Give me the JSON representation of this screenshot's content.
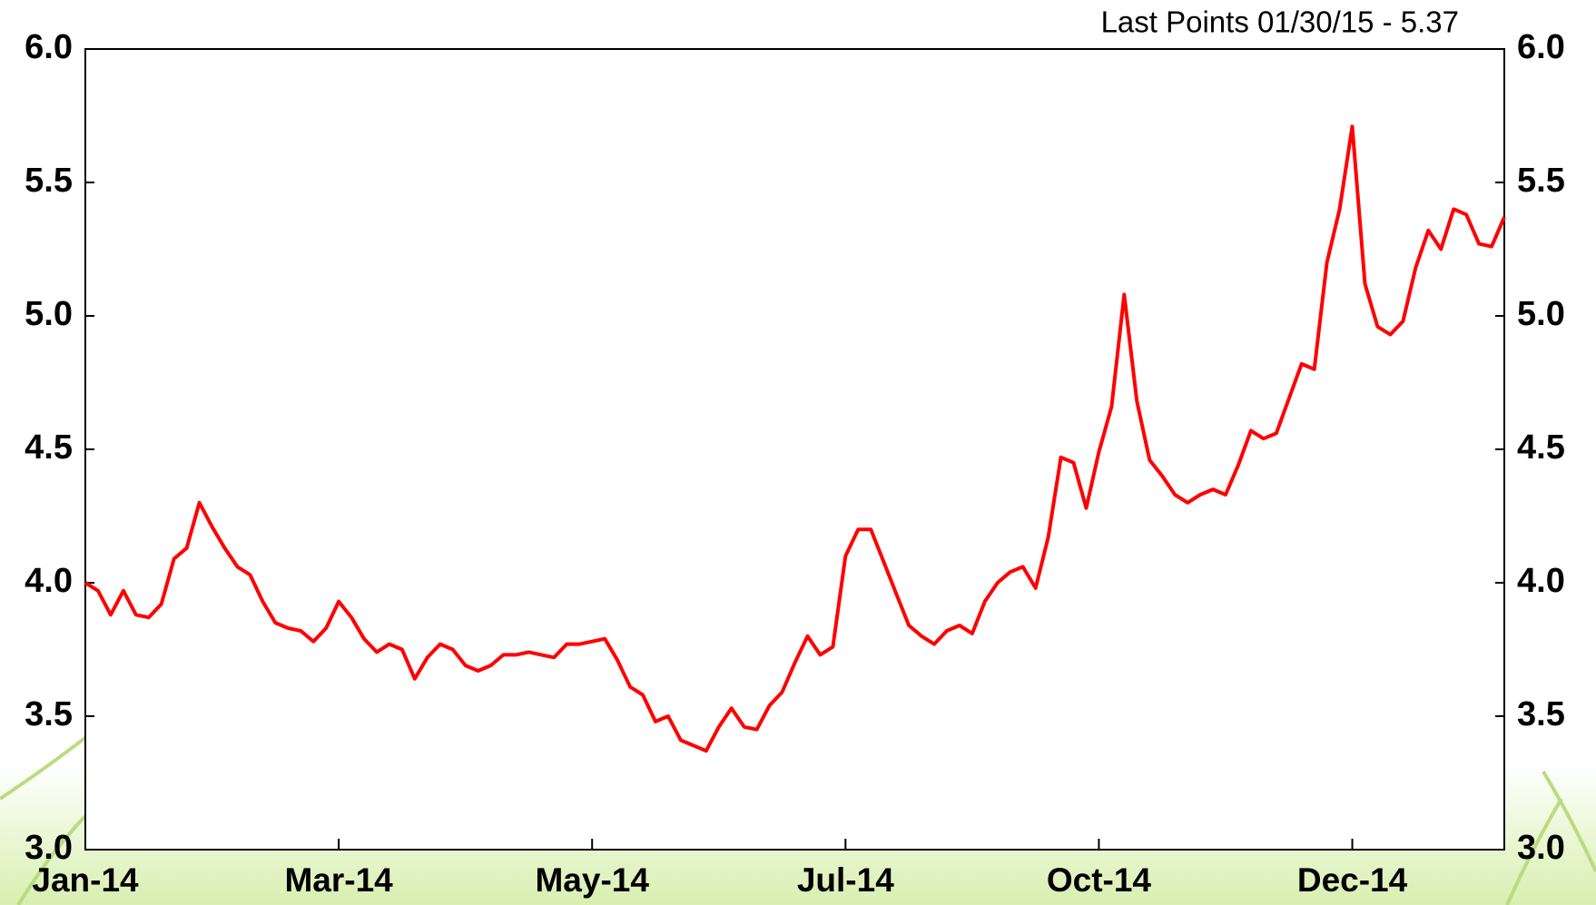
{
  "chart_data": {
    "type": "line",
    "annotation": "Last Points 01/30/15 - 5.37",
    "categories": [
      "Jan-14",
      null,
      null,
      null,
      null,
      null,
      null,
      null,
      null,
      null,
      null,
      null,
      null,
      null,
      null,
      null,
      null,
      null,
      null,
      null,
      "Mar-14",
      null,
      null,
      null,
      null,
      null,
      null,
      null,
      null,
      null,
      null,
      null,
      null,
      null,
      null,
      null,
      null,
      null,
      null,
      null,
      "May-14",
      null,
      null,
      null,
      null,
      null,
      null,
      null,
      null,
      null,
      null,
      null,
      null,
      null,
      null,
      null,
      null,
      null,
      null,
      null,
      "Jul-14",
      null,
      null,
      null,
      null,
      null,
      null,
      null,
      null,
      null,
      null,
      null,
      null,
      null,
      null,
      null,
      null,
      null,
      null,
      null,
      "Oct-14",
      null,
      null,
      null,
      null,
      null,
      null,
      null,
      null,
      null,
      null,
      null,
      null,
      null,
      null,
      null,
      null,
      null,
      null,
      null,
      "Dec-14",
      null,
      null,
      null,
      null,
      null,
      null,
      null,
      null,
      null,
      null,
      null,
      null
    ],
    "values": [
      4.0,
      3.97,
      3.88,
      3.97,
      3.88,
      3.87,
      3.92,
      4.09,
      4.13,
      4.3,
      4.21,
      4.13,
      4.06,
      4.03,
      3.93,
      3.85,
      3.83,
      3.82,
      3.78,
      3.83,
      3.93,
      3.87,
      3.79,
      3.74,
      3.77,
      3.75,
      3.64,
      3.72,
      3.77,
      3.75,
      3.69,
      3.67,
      3.69,
      3.73,
      3.73,
      3.74,
      3.73,
      3.72,
      3.77,
      3.77,
      3.78,
      3.79,
      3.71,
      3.61,
      3.58,
      3.48,
      3.5,
      3.41,
      3.39,
      3.37,
      3.46,
      3.53,
      3.46,
      3.45,
      3.54,
      3.59,
      3.7,
      3.8,
      3.73,
      3.76,
      4.1,
      4.2,
      4.2,
      4.08,
      3.96,
      3.84,
      3.8,
      3.77,
      3.82,
      3.84,
      3.81,
      3.93,
      4.0,
      4.04,
      4.06,
      3.98,
      4.17,
      4.47,
      4.45,
      4.28,
      4.49,
      4.66,
      5.08,
      4.68,
      4.46,
      4.4,
      4.33,
      4.3,
      4.33,
      4.35,
      4.33,
      4.44,
      4.57,
      4.54,
      4.56,
      4.69,
      4.82,
      4.8,
      5.2,
      5.4,
      5.71,
      5.12,
      4.96,
      4.93,
      4.98,
      5.18,
      5.32,
      5.25,
      5.4,
      5.38,
      5.27,
      5.26,
      5.37
    ],
    "color": "#ff0000",
    "ylim": [
      3,
      6
    ],
    "yticks": [
      {
        "value": 3,
        "label": "3.0"
      },
      3.5,
      {
        "value": 4,
        "label": "4.0"
      },
      4.5,
      {
        "value": 5,
        "label": "5.0"
      },
      5.5,
      {
        "value": 6,
        "label": "6.0"
      }
    ]
  }
}
